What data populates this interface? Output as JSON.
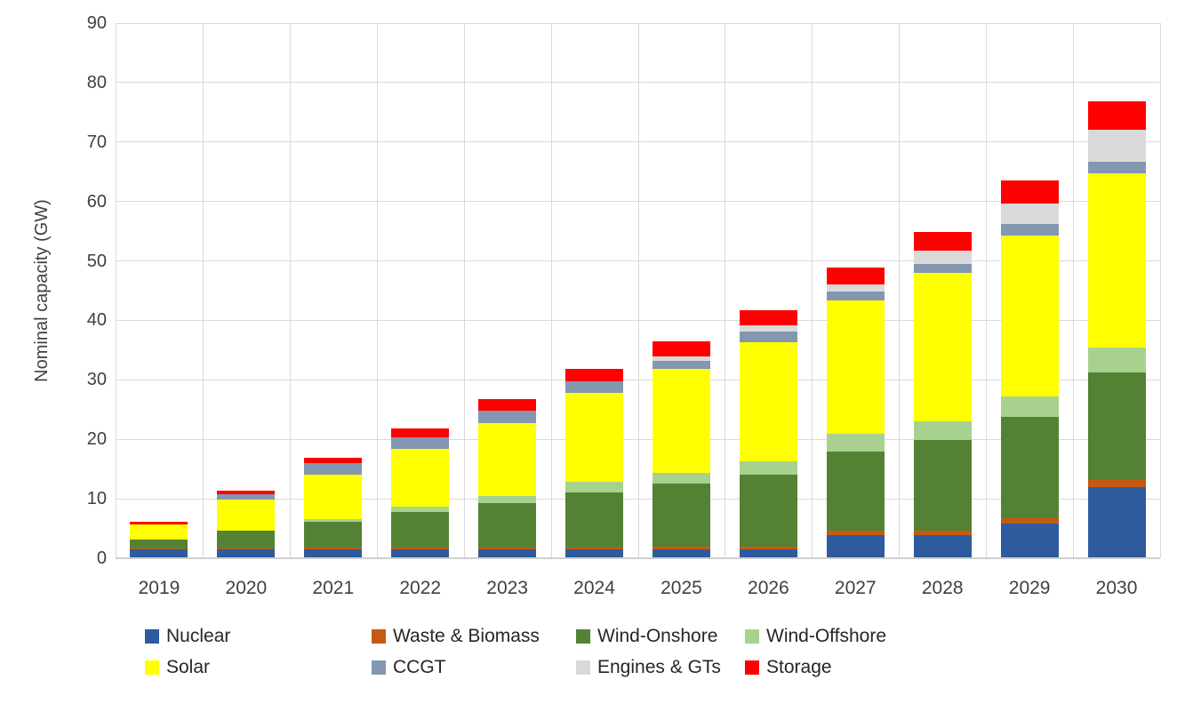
{
  "chart_data": {
    "type": "bar",
    "stacked": true,
    "title": "",
    "xlabel": "",
    "ylabel": "Nominal capacity (GW)",
    "ylim": [
      0,
      90
    ],
    "ytick_step": 10,
    "grid": true,
    "legend_position": "bottom",
    "categories": [
      "2019",
      "2020",
      "2021",
      "2022",
      "2023",
      "2024",
      "2025",
      "2026",
      "2027",
      "2028",
      "2029",
      "2030"
    ],
    "series": [
      {
        "name": "Nuclear",
        "color": "#2E5B9D",
        "values": [
          1.5,
          1.5,
          1.5,
          1.5,
          1.5,
          1.5,
          1.5,
          1.5,
          3.9,
          3.9,
          5.9,
          11.9
        ]
      },
      {
        "name": "Waste & Biomass",
        "color": "#C55A11",
        "values": [
          0.1,
          0.1,
          0.3,
          0.3,
          0.3,
          0.3,
          0.4,
          0.5,
          0.7,
          0.8,
          0.9,
          1.3
        ]
      },
      {
        "name": "Wind-Onshore",
        "color": "#548235",
        "values": [
          1.5,
          3.0,
          4.3,
          6.0,
          7.4,
          9.2,
          10.6,
          12.0,
          13.4,
          15.2,
          16.9,
          18.1
        ]
      },
      {
        "name": "Wind-Offshore",
        "color": "#A9D18E",
        "values": [
          0,
          0,
          0.5,
          0.8,
          1.3,
          1.8,
          1.9,
          2.3,
          3.0,
          3.2,
          3.5,
          4.2
        ]
      },
      {
        "name": "Solar",
        "color": "#FFFF00",
        "values": [
          2.6,
          5.2,
          7.4,
          9.8,
          12.3,
          15.0,
          17.4,
          20.1,
          22.4,
          24.9,
          27.1,
          29.3
        ]
      },
      {
        "name": "CCGT",
        "color": "#8497B0",
        "values": [
          0,
          1.0,
          2.0,
          2.0,
          2.0,
          2.0,
          1.4,
          1.8,
          1.4,
          1.5,
          1.9,
          1.9
        ]
      },
      {
        "name": "Engines & GTs",
        "color": "#D9D9D9",
        "values": [
          0,
          0,
          0,
          0,
          0,
          0,
          0.8,
          0.9,
          1.2,
          2.3,
          3.5,
          5.4
        ]
      },
      {
        "name": "Storage",
        "color": "#FF0000",
        "values": [
          0.4,
          0.6,
          0.9,
          1.5,
          2.0,
          2.0,
          2.5,
          2.6,
          2.9,
          3.0,
          3.8,
          4.8
        ]
      }
    ],
    "legend_rows": [
      [
        "Nuclear",
        "Waste & Biomass",
        "Wind-Onshore",
        "Wind-Offshore"
      ],
      [
        "Solar",
        "CCGT",
        "Engines & GTs",
        "Storage"
      ]
    ]
  }
}
